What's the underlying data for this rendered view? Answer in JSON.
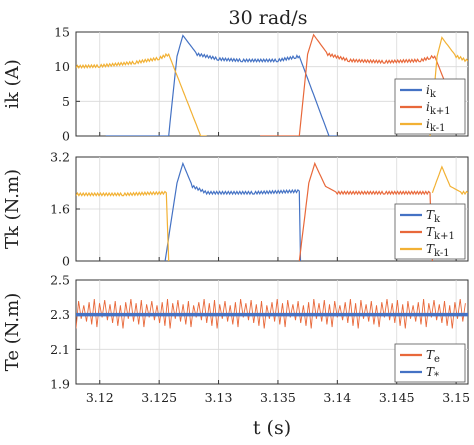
{
  "colors": {
    "blue": "#4472C4",
    "orange": "#E8683A",
    "yellow": "#F2B134",
    "grid": "#d9d9d9",
    "axis": "#333333"
  },
  "chart_data": [
    {
      "type": "line",
      "title": "30 rad/s",
      "ylabel": "ik (A)",
      "ylim": [
        0,
        15
      ],
      "yticks": [
        "0",
        "5",
        "10",
        "15"
      ],
      "xlim": [
        3.118,
        3.151
      ],
      "grid": true,
      "legend_position": "bottom-right",
      "series": [
        {
          "name": "ik",
          "color": "#4472C4",
          "points": [
            [
              3.1205,
              0
            ],
            [
              3.1258,
              0
            ],
            [
              3.1265,
              11.5
            ],
            [
              3.127,
              14.5
            ],
            [
              3.1282,
              11.8
            ],
            [
              3.13,
              11.1
            ],
            [
              3.132,
              10.9
            ],
            [
              3.135,
              10.9
            ],
            [
              3.1365,
              11.4
            ],
            [
              3.1368,
              11.5
            ],
            [
              3.1393,
              0
            ],
            [
              3.14,
              0
            ]
          ]
        },
        {
          "name": "ik+1",
          "color": "#E8683A",
          "points": [
            [
              3.1335,
              0
            ],
            [
              3.1368,
              0
            ],
            [
              3.1375,
              11.8
            ],
            [
              3.138,
              14.6
            ],
            [
              3.1392,
              11.8
            ],
            [
              3.141,
              10.9
            ],
            [
              3.144,
              10.7
            ],
            [
              3.147,
              10.9
            ],
            [
              3.1478,
              11.3
            ],
            [
              3.1482,
              11.5
            ],
            [
              3.1505,
              1.5
            ]
          ]
        },
        {
          "name": "ik-1",
          "color": "#F2B134",
          "points": [
            [
              3.118,
              10.0
            ],
            [
              3.12,
              10.1
            ],
            [
              3.123,
              10.6
            ],
            [
              3.125,
              11.2
            ],
            [
              3.1258,
              11.8
            ],
            [
              3.1285,
              0
            ],
            [
              3.129,
              0
            ]
          ]
        },
        {
          "name": "ik-1 (next)",
          "color": "#F2B134",
          "points": [
            [
              3.1478,
              0
            ],
            [
              3.1484,
              11.5
            ],
            [
              3.1488,
              14.2
            ],
            [
              3.15,
              11.5
            ],
            [
              3.151,
              10.8
            ]
          ]
        }
      ]
    },
    {
      "type": "line",
      "ylabel": "Tk (N.m)",
      "ylim": [
        0,
        3.2
      ],
      "yticks": [
        "0",
        "1.6",
        "3.2"
      ],
      "xlim": [
        3.118,
        3.151
      ],
      "grid": true,
      "legend_position": "bottom-right",
      "series": [
        {
          "name": "Tk",
          "color": "#4472C4",
          "points": [
            [
              3.1255,
              0
            ],
            [
              3.1265,
              2.4
            ],
            [
              3.127,
              3.0
            ],
            [
              3.1278,
              2.3
            ],
            [
              3.129,
              2.1
            ],
            [
              3.133,
              2.1
            ],
            [
              3.1368,
              2.15
            ],
            [
              3.1369,
              0
            ]
          ]
        },
        {
          "name": "Tk+1",
          "color": "#E8683A",
          "points": [
            [
              3.1368,
              0
            ],
            [
              3.1376,
              2.4
            ],
            [
              3.1381,
              3.0
            ],
            [
              3.139,
              2.3
            ],
            [
              3.14,
              2.1
            ],
            [
              3.144,
              2.1
            ],
            [
              3.1478,
              2.1
            ],
            [
              3.148,
              0
            ]
          ]
        },
        {
          "name": "Tk-1",
          "color": "#F2B134",
          "points": [
            [
              3.118,
              2.05
            ],
            [
              3.122,
              2.05
            ],
            [
              3.1256,
              2.1
            ],
            [
              3.1258,
              0
            ]
          ]
        },
        {
          "name": "Tk-1 (next)",
          "color": "#F2B134",
          "points": [
            [
              3.148,
              2.1
            ],
            [
              3.1488,
              2.9
            ],
            [
              3.1495,
              2.3
            ],
            [
              3.1505,
              2.1
            ],
            [
              3.151,
              2.1
            ]
          ]
        }
      ]
    },
    {
      "type": "line",
      "ylabel": "Te (N.m)",
      "ylim": [
        1.9,
        2.5
      ],
      "yticks": [
        "1.9",
        "2.1",
        "2.3",
        "2.5"
      ],
      "xticks": [
        "3.12",
        "3.125",
        "3.13",
        "3.135",
        "3.14",
        "3.145",
        "3.15"
      ],
      "xlabel": "t (s)",
      "xlim": [
        3.118,
        3.151
      ],
      "grid": true,
      "legend_position": "bottom-right",
      "series": [
        {
          "name": "Te",
          "color": "#E8683A",
          "band": [
            2.22,
            2.39
          ],
          "mean": 2.3
        },
        {
          "name": "T*",
          "color": "#4472C4",
          "constant": 2.3
        }
      ]
    }
  ],
  "legends": [
    {
      "items": [
        {
          "base": "i",
          "sub": "k"
        },
        {
          "base": "i",
          "sub": "k+1"
        },
        {
          "base": "i",
          "sub": "k-1"
        }
      ]
    },
    {
      "items": [
        {
          "base": "T",
          "sub": "k"
        },
        {
          "base": "T",
          "sub": "k+1"
        },
        {
          "base": "T",
          "sub": "k-1"
        }
      ]
    },
    {
      "items": [
        {
          "base": "T",
          "sub": "e"
        },
        {
          "base": "T",
          "sub": "*"
        }
      ]
    }
  ]
}
